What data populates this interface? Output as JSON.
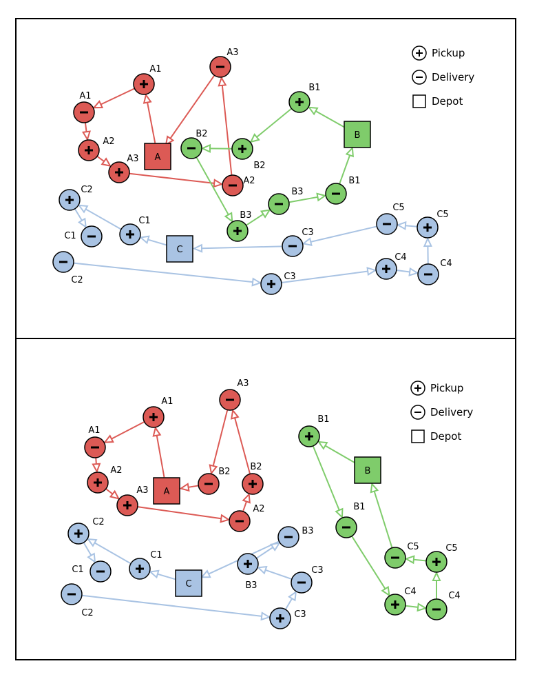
{
  "colors": {
    "A": {
      "fill": "#dc5a55",
      "stroke": "#dc5a55"
    },
    "B": {
      "fill": "#7fcc6b",
      "stroke": "#7fcc6b"
    },
    "C": {
      "fill": "#a9c3e3",
      "stroke": "#a9c3e3"
    }
  },
  "legend": {
    "pickup_label": "Pickup",
    "delivery_label": "Delivery",
    "depot_label": "Depot",
    "pickup_sign": "+",
    "delivery_sign": "−"
  },
  "panels": [
    {
      "id": "top",
      "depots": [
        {
          "id": "dA",
          "route": "A",
          "label": "A"
        },
        {
          "id": "dB",
          "route": "B",
          "label": "B"
        },
        {
          "id": "dC",
          "route": "C",
          "label": "C"
        }
      ],
      "nodes": [
        {
          "id": "pA1",
          "route": "A",
          "kind": "pickup",
          "label": "A1"
        },
        {
          "id": "dA1",
          "route": "A",
          "kind": "delivery",
          "label": "A1"
        },
        {
          "id": "pA2",
          "route": "A",
          "kind": "pickup",
          "label": "A2"
        },
        {
          "id": "pA3",
          "route": "A",
          "kind": "pickup",
          "label": "A3"
        },
        {
          "id": "dA2",
          "route": "A",
          "kind": "delivery",
          "label": "A2"
        },
        {
          "id": "dA3",
          "route": "A",
          "kind": "delivery",
          "label": "A3"
        },
        {
          "id": "pB1",
          "route": "B",
          "kind": "pickup",
          "label": "B1"
        },
        {
          "id": "pB2",
          "route": "B",
          "kind": "pickup",
          "label": "B2"
        },
        {
          "id": "dB2",
          "route": "B",
          "kind": "delivery",
          "label": "B2"
        },
        {
          "id": "pB3",
          "route": "B",
          "kind": "pickup",
          "label": "B3"
        },
        {
          "id": "dB3",
          "route": "B",
          "kind": "delivery",
          "label": "B3"
        },
        {
          "id": "dB1",
          "route": "B",
          "kind": "delivery",
          "label": "B1"
        },
        {
          "id": "pC1",
          "route": "C",
          "kind": "pickup",
          "label": "C1"
        },
        {
          "id": "pC2",
          "route": "C",
          "kind": "pickup",
          "label": "C2"
        },
        {
          "id": "dC1",
          "route": "C",
          "kind": "delivery",
          "label": "C1"
        },
        {
          "id": "dC2",
          "route": "C",
          "kind": "delivery",
          "label": "C2"
        },
        {
          "id": "pC3",
          "route": "C",
          "kind": "pickup",
          "label": "C3"
        },
        {
          "id": "pC4",
          "route": "C",
          "kind": "pickup",
          "label": "C4"
        },
        {
          "id": "dC4",
          "route": "C",
          "kind": "delivery",
          "label": "C4"
        },
        {
          "id": "pC5",
          "route": "C",
          "kind": "pickup",
          "label": "C5"
        },
        {
          "id": "dC5",
          "route": "C",
          "kind": "delivery",
          "label": "C5"
        },
        {
          "id": "dC3",
          "route": "C",
          "kind": "delivery",
          "label": "C3"
        }
      ],
      "edges": [
        {
          "route": "A",
          "from": "dA",
          "to": "pA1"
        },
        {
          "route": "A",
          "from": "pA1",
          "to": "dA1"
        },
        {
          "route": "A",
          "from": "dA1",
          "to": "pA2"
        },
        {
          "route": "A",
          "from": "pA2",
          "to": "pA3"
        },
        {
          "route": "A",
          "from": "pA3",
          "to": "dA2"
        },
        {
          "route": "A",
          "from": "dA2",
          "to": "dA3"
        },
        {
          "route": "A",
          "from": "dA3",
          "to": "dA"
        },
        {
          "route": "B",
          "from": "dB",
          "to": "pB1"
        },
        {
          "route": "B",
          "from": "pB1",
          "to": "pB2"
        },
        {
          "route": "B",
          "from": "pB2",
          "to": "dB2"
        },
        {
          "route": "B",
          "from": "dB2",
          "to": "pB3"
        },
        {
          "route": "B",
          "from": "pB3",
          "to": "dB3"
        },
        {
          "route": "B",
          "from": "dB3",
          "to": "dB1"
        },
        {
          "route": "B",
          "from": "dB1",
          "to": "dB"
        },
        {
          "route": "C",
          "from": "dC",
          "to": "pC1"
        },
        {
          "route": "C",
          "from": "pC1",
          "to": "pC2"
        },
        {
          "route": "C",
          "from": "pC2",
          "to": "dC1"
        },
        {
          "route": "C",
          "from": "dC2",
          "to": "pC3"
        },
        {
          "route": "C",
          "from": "pC3",
          "to": "pC4"
        },
        {
          "route": "C",
          "from": "pC4",
          "to": "dC4"
        },
        {
          "route": "C",
          "from": "dC4",
          "to": "pC5"
        },
        {
          "route": "C",
          "from": "pC5",
          "to": "dC5"
        },
        {
          "route": "C",
          "from": "dC5",
          "to": "dC3"
        },
        {
          "route": "C",
          "from": "dC3",
          "to": "dC"
        }
      ]
    },
    {
      "id": "bottom",
      "depots": [
        {
          "id": "dA",
          "route": "A",
          "label": "A"
        },
        {
          "id": "dB",
          "route": "B",
          "label": "B"
        },
        {
          "id": "dC",
          "route": "C",
          "label": "C"
        }
      ],
      "nodes": [
        {
          "id": "pA1",
          "route": "A",
          "kind": "pickup",
          "label": "A1"
        },
        {
          "id": "dA1",
          "route": "A",
          "kind": "delivery",
          "label": "A1"
        },
        {
          "id": "pA2",
          "route": "A",
          "kind": "pickup",
          "label": "A2"
        },
        {
          "id": "pA3",
          "route": "A",
          "kind": "pickup",
          "label": "A3"
        },
        {
          "id": "dA2",
          "route": "A",
          "kind": "delivery",
          "label": "A2"
        },
        {
          "id": "pB2",
          "route": "A",
          "kind": "pickup",
          "label": "B2"
        },
        {
          "id": "dA3",
          "route": "A",
          "kind": "delivery",
          "label": "A3"
        },
        {
          "id": "dB2",
          "route": "A",
          "kind": "delivery",
          "label": "B2"
        },
        {
          "id": "pB1",
          "route": "B",
          "kind": "pickup",
          "label": "B1"
        },
        {
          "id": "dB1",
          "route": "B",
          "kind": "delivery",
          "label": "B1"
        },
        {
          "id": "pC4",
          "route": "B",
          "kind": "pickup",
          "label": "C4"
        },
        {
          "id": "dC4",
          "route": "B",
          "kind": "delivery",
          "label": "C4"
        },
        {
          "id": "pC5",
          "route": "B",
          "kind": "pickup",
          "label": "C5"
        },
        {
          "id": "dC5",
          "route": "B",
          "kind": "delivery",
          "label": "C5"
        },
        {
          "id": "pC1",
          "route": "C",
          "kind": "pickup",
          "label": "C1"
        },
        {
          "id": "pC2",
          "route": "C",
          "kind": "pickup",
          "label": "C2"
        },
        {
          "id": "dC1",
          "route": "C",
          "kind": "delivery",
          "label": "C1"
        },
        {
          "id": "dC2",
          "route": "C",
          "kind": "delivery",
          "label": "C2"
        },
        {
          "id": "pC3",
          "route": "C",
          "kind": "pickup",
          "label": "C3"
        },
        {
          "id": "dC3",
          "route": "C",
          "kind": "delivery",
          "label": "C3"
        },
        {
          "id": "pB3",
          "route": "C",
          "kind": "pickup",
          "label": "B3"
        },
        {
          "id": "dB3",
          "route": "C",
          "kind": "delivery",
          "label": "B3"
        }
      ],
      "edges": [
        {
          "route": "A",
          "from": "dA",
          "to": "pA1"
        },
        {
          "route": "A",
          "from": "pA1",
          "to": "dA1"
        },
        {
          "route": "A",
          "from": "dA1",
          "to": "pA2"
        },
        {
          "route": "A",
          "from": "pA2",
          "to": "pA3"
        },
        {
          "route": "A",
          "from": "pA3",
          "to": "dA2"
        },
        {
          "route": "A",
          "from": "dA2",
          "to": "pB2"
        },
        {
          "route": "A",
          "from": "pB2",
          "to": "dA3"
        },
        {
          "route": "A",
          "from": "dA3",
          "to": "dB2"
        },
        {
          "route": "A",
          "from": "dB2",
          "to": "dA"
        },
        {
          "route": "B",
          "from": "dB",
          "to": "pB1"
        },
        {
          "route": "B",
          "from": "pB1",
          "to": "dB1"
        },
        {
          "route": "B",
          "from": "dB1",
          "to": "pC4"
        },
        {
          "route": "B",
          "from": "pC4",
          "to": "dC4"
        },
        {
          "route": "B",
          "from": "dC4",
          "to": "pC5"
        },
        {
          "route": "B",
          "from": "pC5",
          "to": "dC5"
        },
        {
          "route": "B",
          "from": "dC5",
          "to": "dB"
        },
        {
          "route": "C",
          "from": "dC",
          "to": "pC1"
        },
        {
          "route": "C",
          "from": "pC1",
          "to": "pC2"
        },
        {
          "route": "C",
          "from": "pC2",
          "to": "dC1"
        },
        {
          "route": "C",
          "from": "dC2",
          "to": "pC3"
        },
        {
          "route": "C",
          "from": "pC3",
          "to": "dC3"
        },
        {
          "route": "C",
          "from": "dC3",
          "to": "pB3"
        },
        {
          "route": "C",
          "from": "pB3",
          "to": "dB3"
        },
        {
          "route": "C",
          "from": "dB3",
          "to": "dC"
        }
      ]
    }
  ]
}
